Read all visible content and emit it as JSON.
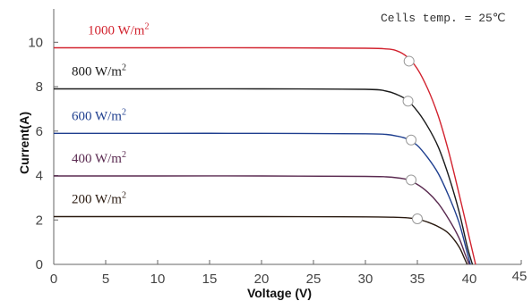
{
  "chart_data": {
    "type": "line",
    "title": "",
    "xlabel": "Voltage  (V)",
    "ylabel": "Current(A)",
    "xlim": [
      0,
      45
    ],
    "ylim": [
      0,
      11.5
    ],
    "x_ticks": [
      0,
      5,
      10,
      15,
      20,
      25,
      30,
      35,
      40,
      45
    ],
    "y_ticks": [
      0,
      2,
      4,
      6,
      8,
      10
    ],
    "grid": false,
    "annotation": "Cells temp. = 25℃",
    "series": [
      {
        "name": "1000 W/m2",
        "label_text": "1000  W/m",
        "label_sup": "2",
        "color": "#d2232f",
        "mpp": [
          34.2,
          9.15
        ],
        "points": [
          [
            0,
            9.75
          ],
          [
            10,
            9.75
          ],
          [
            20,
            9.75
          ],
          [
            30,
            9.73
          ],
          [
            32,
            9.7
          ],
          [
            33,
            9.62
          ],
          [
            34,
            9.35
          ],
          [
            35,
            8.8
          ],
          [
            36,
            7.9
          ],
          [
            37,
            6.7
          ],
          [
            38,
            5.1
          ],
          [
            39,
            3.2
          ],
          [
            40,
            1.2
          ],
          [
            40.6,
            0
          ]
        ]
      },
      {
        "name": "800 W/m2",
        "label_text": "800  W/m",
        "label_sup": "2",
        "color": "#1a1a1a",
        "mpp": [
          34.1,
          7.35
        ],
        "points": [
          [
            0,
            7.9
          ],
          [
            10,
            7.9
          ],
          [
            20,
            7.9
          ],
          [
            30,
            7.88
          ],
          [
            32,
            7.8
          ],
          [
            33,
            7.65
          ],
          [
            34,
            7.4
          ],
          [
            35,
            6.9
          ],
          [
            36,
            6.2
          ],
          [
            37,
            5.3
          ],
          [
            38,
            4.0
          ],
          [
            39,
            2.4
          ],
          [
            39.8,
            0.8
          ],
          [
            40.3,
            0
          ]
        ]
      },
      {
        "name": "600 W/m2",
        "label_text": "600  W/m",
        "label_sup": "2",
        "color": "#1f3f8f",
        "mpp": [
          34.4,
          5.6
        ],
        "points": [
          [
            0,
            5.9
          ],
          [
            10,
            5.9
          ],
          [
            20,
            5.9
          ],
          [
            30,
            5.88
          ],
          [
            32,
            5.85
          ],
          [
            33,
            5.78
          ],
          [
            34,
            5.65
          ],
          [
            35,
            5.35
          ],
          [
            36,
            4.8
          ],
          [
            37,
            4.1
          ],
          [
            38,
            3.1
          ],
          [
            39,
            1.9
          ],
          [
            39.7,
            0.7
          ],
          [
            40.1,
            0
          ]
        ]
      },
      {
        "name": "400 W/m2",
        "label_text": "400  W/m",
        "label_sup": "2",
        "color": "#5a2a50",
        "mpp": [
          34.4,
          3.8
        ],
        "points": [
          [
            0,
            3.98
          ],
          [
            10,
            3.98
          ],
          [
            20,
            3.98
          ],
          [
            30,
            3.96
          ],
          [
            32,
            3.94
          ],
          [
            33,
            3.9
          ],
          [
            34,
            3.82
          ],
          [
            35,
            3.6
          ],
          [
            36,
            3.25
          ],
          [
            37,
            2.75
          ],
          [
            38,
            2.05
          ],
          [
            39,
            1.2
          ],
          [
            39.6,
            0.45
          ],
          [
            40,
            0
          ]
        ]
      },
      {
        "name": "200 W/m2",
        "label_text": "200  W/m",
        "label_sup": "2",
        "color": "#2a1a10",
        "mpp": [
          35.0,
          2.05
        ],
        "points": [
          [
            0,
            2.15
          ],
          [
            10,
            2.15
          ],
          [
            20,
            2.15
          ],
          [
            30,
            2.14
          ],
          [
            33,
            2.12
          ],
          [
            34,
            2.1
          ],
          [
            35,
            2.04
          ],
          [
            36,
            1.9
          ],
          [
            37,
            1.7
          ],
          [
            38,
            1.4
          ],
          [
            39,
            0.8
          ],
          [
            39.5,
            0.3
          ],
          [
            39.8,
            0
          ]
        ]
      }
    ]
  }
}
